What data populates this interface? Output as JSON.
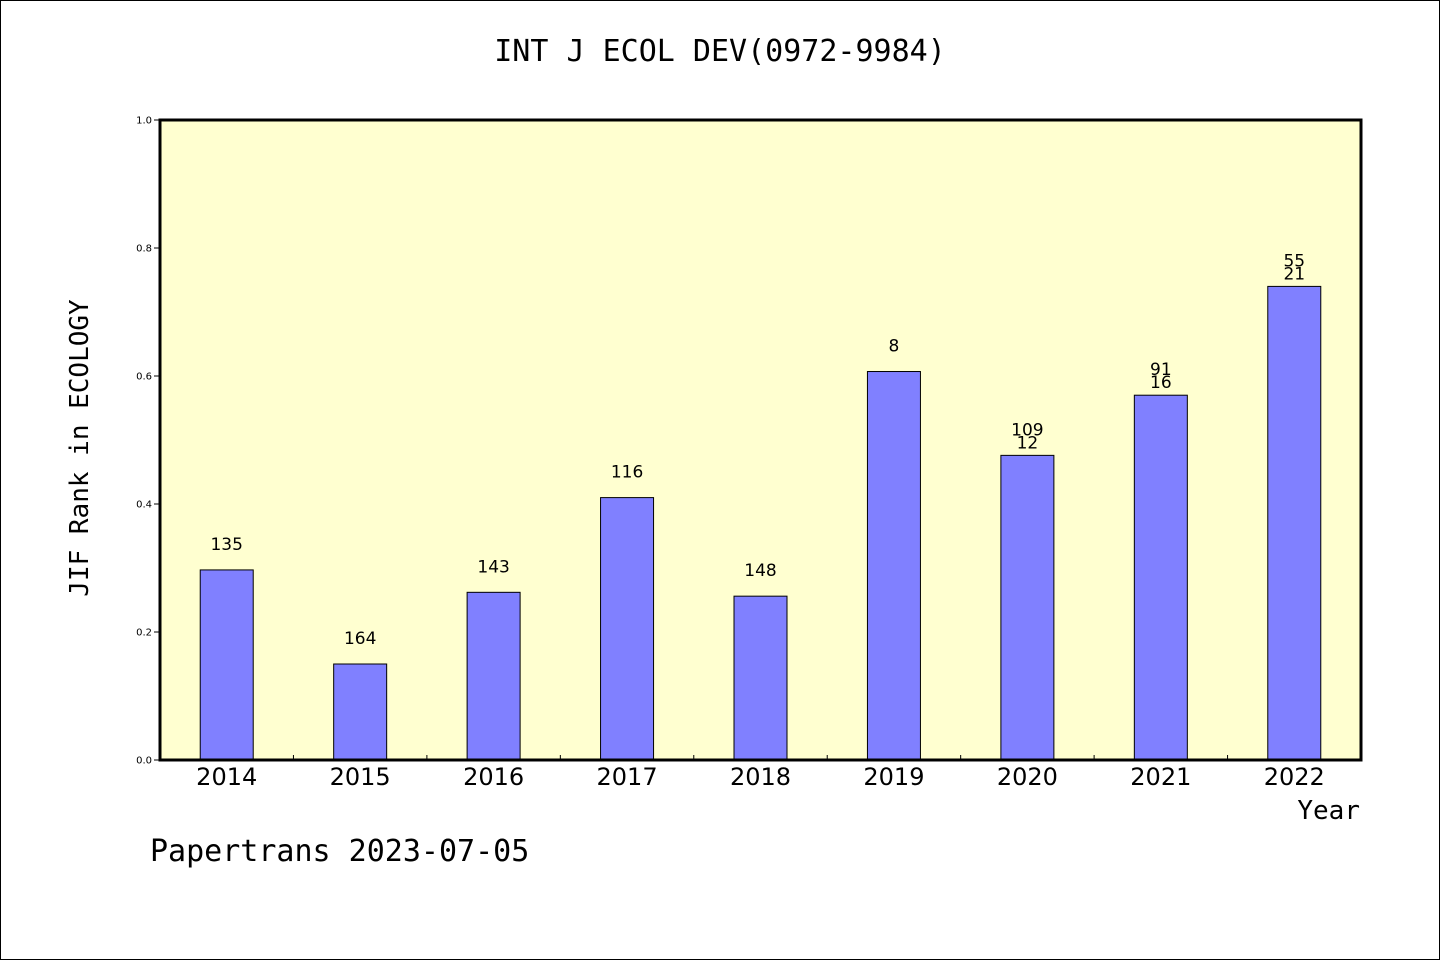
{
  "chart_data": {
    "type": "bar",
    "title": "INT J ECOL DEV(0972-9984)",
    "ylabel": "JIF Rank in ECOLOGY",
    "xlabel": "Year",
    "categories": [
      "2014",
      "2015",
      "2016",
      "2017",
      "2018",
      "2019",
      "2020",
      "2021",
      "2022"
    ],
    "values": [
      0.297,
      0.15,
      0.262,
      0.41,
      0.256,
      0.607,
      0.476,
      0.57,
      0.74
    ],
    "annotations": [
      [
        "135"
      ],
      [
        "164"
      ],
      [
        "143"
      ],
      [
        "116"
      ],
      [
        "148"
      ],
      [
        "8"
      ],
      [
        "109",
        "12"
      ],
      [
        "91",
        "16"
      ],
      [
        "55",
        "21"
      ]
    ],
    "ylim": [
      0,
      1.0
    ],
    "yticks": [
      "0.0",
      "0.2",
      "0.4",
      "0.6",
      "0.8",
      "1.0"
    ],
    "grid": false,
    "colors": {
      "bar": "#8080ff",
      "plot_background": "#ffffd0",
      "axis": "#000000"
    }
  },
  "footer": "Papertrans 2023-07-05"
}
